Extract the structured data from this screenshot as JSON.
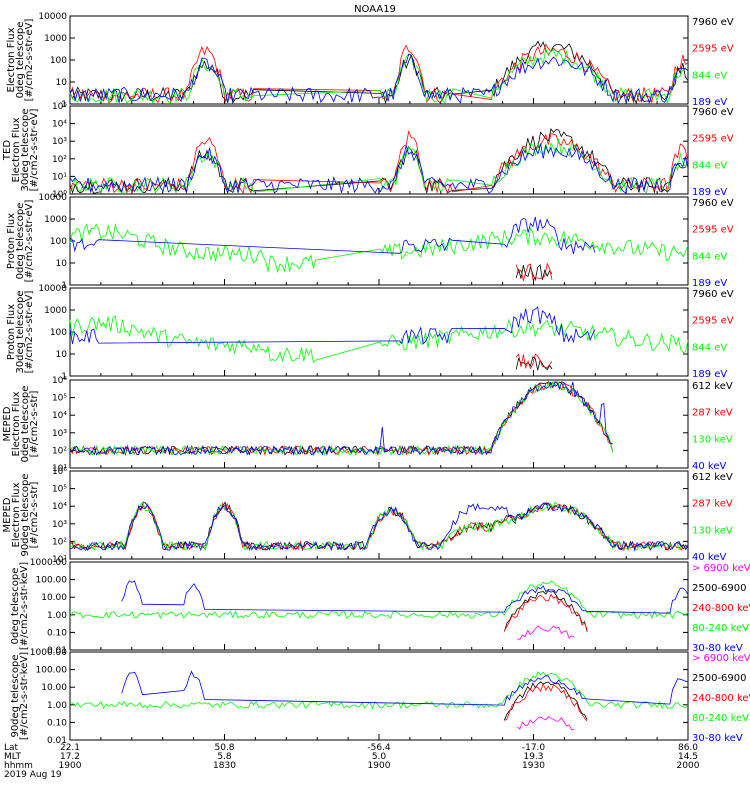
{
  "title": "NOAA19",
  "colors": {
    "black": "#000000",
    "red": "#ff0000",
    "green": "#00ff00",
    "blue": "#0000ff",
    "magenta": "#ff00ff",
    "bg": "#ffffff"
  },
  "chart_data": [
    {
      "type": "line",
      "ylabel": [
        "Electron Flux",
        "0deg telescope",
        "[#/cm2-s-str-eV]"
      ],
      "ylog": true,
      "ylim": [
        1,
        10000
      ],
      "yticks": [
        "10000",
        "1000",
        "100",
        "10",
        "1"
      ],
      "legend": [
        {
          "text": "7960 eV",
          "color": "#000000"
        },
        {
          "text": "2595 eV",
          "color": "#ff0000"
        },
        {
          "text": "844 eV",
          "color": "#00ff00"
        },
        {
          "text": "189 eV",
          "color": "#0000ff"
        }
      ]
    },
    {
      "type": "line",
      "ylabel": [
        "TED",
        "Electron Flux",
        "30deg telescope",
        "[#/cm2-s-str-eV]"
      ],
      "ylog": true,
      "ylim": [
        1,
        100000
      ],
      "yticks": [
        "10⁵",
        "10⁴",
        "10³",
        "10²",
        "10¹",
        "10⁰"
      ],
      "legend": [
        {
          "text": "7960 eV",
          "color": "#000000"
        },
        {
          "text": "2595 eV",
          "color": "#ff0000"
        },
        {
          "text": "844 eV",
          "color": "#00ff00"
        },
        {
          "text": "189 eV",
          "color": "#0000ff"
        }
      ]
    },
    {
      "type": "line",
      "ylabel": [
        "Proton Flux",
        "0deg telescope",
        "[#/cm2-s-str-eV]"
      ],
      "ylog": true,
      "ylim": [
        1,
        10000
      ],
      "yticks": [
        "10000",
        "1000",
        "100",
        "10",
        "1"
      ],
      "legend": [
        {
          "text": "7960 eV",
          "color": "#000000"
        },
        {
          "text": "2595 eV",
          "color": "#ff0000"
        },
        {
          "text": "844 eV",
          "color": "#00ff00"
        },
        {
          "text": "189 eV",
          "color": "#0000ff"
        }
      ]
    },
    {
      "type": "line",
      "ylabel": [
        "Proton Flux",
        "30deg telescope",
        "[#/cm2-s-str-eV]"
      ],
      "ylog": true,
      "ylim": [
        1,
        10000
      ],
      "yticks": [
        "10000",
        "1000",
        "100",
        "10",
        "1"
      ],
      "legend": [
        {
          "text": "7960 eV",
          "color": "#000000"
        },
        {
          "text": "2595 eV",
          "color": "#ff0000"
        },
        {
          "text": "844 eV",
          "color": "#00ff00"
        },
        {
          "text": "189 eV",
          "color": "#0000ff"
        }
      ]
    },
    {
      "type": "line",
      "ylabel": [
        "MEPED",
        "Electron Flux",
        "0deg telescope",
        "[#/cm2-s-str]"
      ],
      "ylog": true,
      "ylim": [
        10,
        1000000
      ],
      "yticks": [
        "10⁶",
        "10⁵",
        "10⁴",
        "10³",
        "10²",
        "10¹"
      ],
      "legend": [
        {
          "text": "612 keV",
          "color": "#000000"
        },
        {
          "text": "287 keV",
          "color": "#ff0000"
        },
        {
          "text": "130 keV",
          "color": "#00ff00"
        },
        {
          "text": "40 keV",
          "color": "#0000ff"
        }
      ]
    },
    {
      "type": "line",
      "ylabel": [
        "MEPED",
        "Electron Flux",
        "90deg telescope",
        "[#/cm2-s-str]"
      ],
      "ylog": true,
      "ylim": [
        10,
        1000000
      ],
      "yticks": [
        "10⁶",
        "10⁵",
        "10⁴",
        "10³",
        "10²",
        "10¹"
      ],
      "legend": [
        {
          "text": "612 keV",
          "color": "#000000"
        },
        {
          "text": "287 keV",
          "color": "#ff0000"
        },
        {
          "text": "130 keV",
          "color": "#00ff00"
        },
        {
          "text": "40 keV",
          "color": "#0000ff"
        }
      ]
    },
    {
      "type": "line",
      "ylabel": [
        "0deg telescope",
        "[#/cm2-s-str-keV]"
      ],
      "ylog": true,
      "ylim": [
        0.01,
        1000
      ],
      "yticks": [
        "1000.00",
        "100.00",
        "10.00",
        "1.00",
        "0.10",
        "0.01"
      ],
      "legend": [
        {
          "text": "> 6900 keV",
          "color": "#ff00ff"
        },
        {
          "text": "2500-6900",
          "color": "#000000"
        },
        {
          "text": "240-800 keV",
          "color": "#ff0000"
        },
        {
          "text": "80-240 keV",
          "color": "#00ff00"
        },
        {
          "text": "30-80 keV",
          "color": "#0000ff"
        }
      ]
    },
    {
      "type": "line",
      "ylabel": [
        "90deg telescope",
        "[#/cm2-s-str-keV]"
      ],
      "ylog": true,
      "ylim": [
        0.01,
        1000
      ],
      "yticks": [
        "1000.00",
        "100.00",
        "10.00",
        "1.00",
        "0.10",
        "0.01"
      ],
      "legend": [
        {
          "text": "> 6900 keV",
          "color": "#ff00ff"
        },
        {
          "text": "2500-6900",
          "color": "#000000"
        },
        {
          "text": "240-800 keV",
          "color": "#ff0000"
        },
        {
          "text": "80-240 keV",
          "color": "#00ff00"
        },
        {
          "text": "30-80 keV",
          "color": "#0000ff"
        }
      ]
    }
  ],
  "xaxis": {
    "row_labels": [
      "Lat",
      "MLT",
      "hhmm"
    ],
    "date": "2019 Aug 19",
    "ticks": [
      {
        "frac": 0.0,
        "lat": "22.1",
        "mlt": "17.2",
        "hhmm": "1900"
      },
      {
        "frac": 0.25,
        "lat": "50.8",
        "mlt": "5.8",
        "hhmm": "1830"
      },
      {
        "frac": 0.5,
        "lat": "-56.4",
        "mlt": "5.0",
        "hhmm": "1900"
      },
      {
        "frac": 0.75,
        "lat": "-17.0",
        "mlt": "19.3",
        "hhmm": "1930"
      },
      {
        "frac": 1.0,
        "lat": "86.0",
        "mlt": "14.5",
        "hhmm": "2000"
      }
    ]
  }
}
